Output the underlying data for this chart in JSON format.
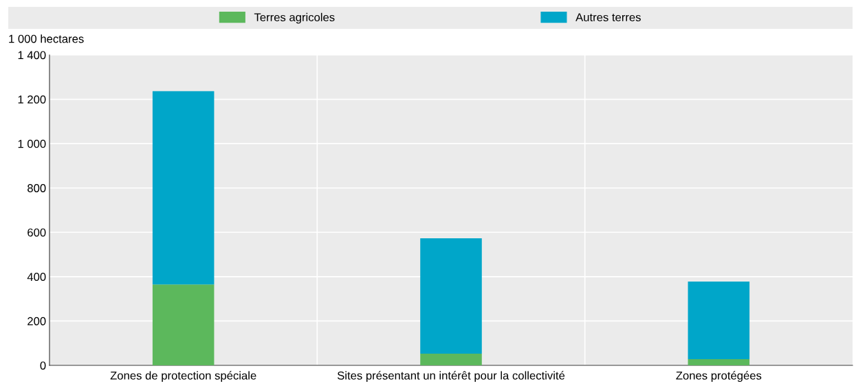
{
  "chart_data": {
    "type": "bar",
    "stacked": true,
    "ylabel": "1 000 hectares",
    "categories": [
      "Zones de protection spéciale",
      "Sites présentant un intérêt pour la collectivité",
      "Zones protégées"
    ],
    "series": [
      {
        "name": "Terres agricoles",
        "color": "#5cb85c",
        "values": [
          365,
          53,
          28
        ]
      },
      {
        "name": "Autres terres",
        "color": "#00a6c9",
        "values": [
          872,
          520,
          350
        ]
      }
    ],
    "ylim": [
      0,
      1400
    ],
    "yticks": [
      0,
      200,
      400,
      600,
      800,
      {
        "value": 1000,
        "label": "1 000"
      },
      {
        "value": 1200,
        "label": "1 200"
      },
      {
        "value": 1400,
        "label": "1 400"
      }
    ],
    "grid": true,
    "legend": "top"
  }
}
